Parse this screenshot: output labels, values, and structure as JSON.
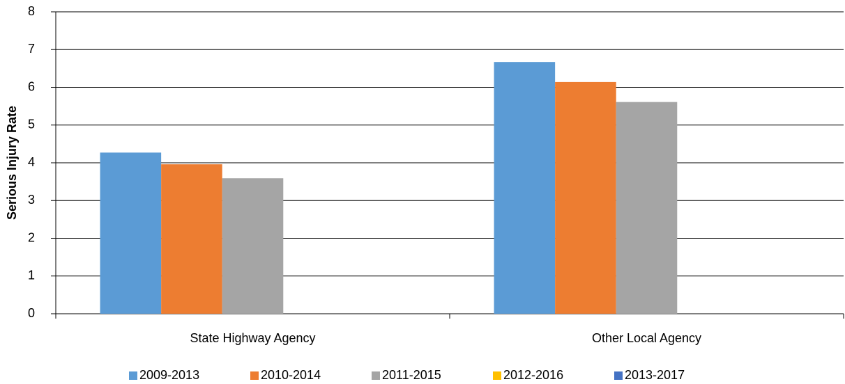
{
  "chart_data": {
    "type": "bar",
    "y_label": "Serious Injury Rate",
    "categories": [
      "State Highway Agency",
      "Other Local Agency"
    ],
    "series": [
      {
        "name": "2009-2013",
        "color": "#5b9bd5",
        "values": [
          4.27,
          6.67
        ]
      },
      {
        "name": "2010-2014",
        "color": "#ed7d31",
        "values": [
          3.96,
          6.14
        ]
      },
      {
        "name": "2011-2015",
        "color": "#a5a5a5",
        "values": [
          3.59,
          5.61
        ]
      },
      {
        "name": "2012-2016",
        "color": "#ffc000",
        "values": [
          null,
          null
        ]
      },
      {
        "name": "2013-2017",
        "color": "#4472c4",
        "values": [
          null,
          null
        ]
      }
    ],
    "ylim": [
      0,
      8
    ],
    "yticks": [
      0,
      1,
      2,
      3,
      4,
      5,
      6,
      7,
      8
    ],
    "grid": true,
    "legend": "bottom"
  }
}
